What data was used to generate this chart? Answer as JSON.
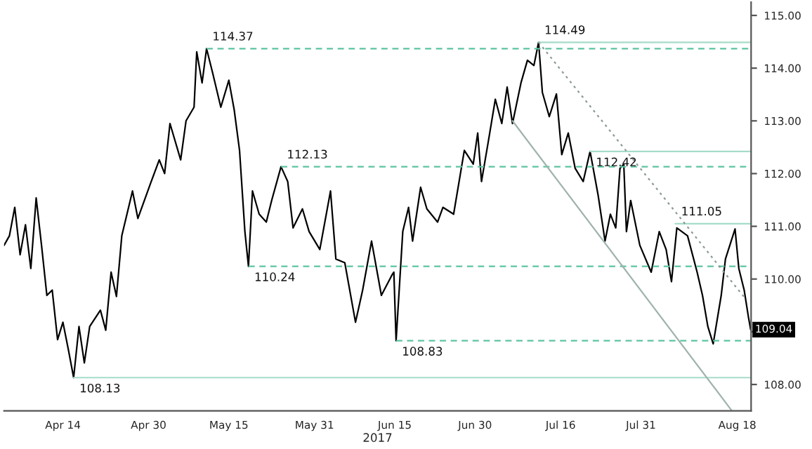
{
  "chart_data": {
    "type": "line",
    "xlabel": "2017",
    "xlim": [
      "2017-04-03",
      "2017-08-20T14:00"
    ],
    "xticks": [
      {
        "value": "2017-04-14",
        "label": "Apr 14"
      },
      {
        "value": "2017-04-30",
        "label": "Apr 30"
      },
      {
        "value": "2017-05-15",
        "label": "May 15"
      },
      {
        "value": "2017-05-31",
        "label": "May 31"
      },
      {
        "value": "2017-06-15",
        "label": "Jun 15"
      },
      {
        "value": "2017-06-30",
        "label": "Jun 30"
      },
      {
        "value": "2017-07-16",
        "label": "Jul 16"
      },
      {
        "value": "2017-07-31",
        "label": "Jul 31"
      },
      {
        "value": "2017-08-18",
        "label": "Aug 18"
      }
    ],
    "ylim": [
      107.5,
      115.25
    ],
    "yticks": [
      {
        "value": 108,
        "label": "108.00"
      },
      {
        "value": 109,
        "label": null
      },
      {
        "value": 110,
        "label": "110.00"
      },
      {
        "value": 111,
        "label": "111.00"
      },
      {
        "value": 112,
        "label": "112.00"
      },
      {
        "value": 113,
        "label": "113.00"
      },
      {
        "value": 114,
        "label": "114.00"
      },
      {
        "value": 115,
        "label": "115.00"
      }
    ],
    "grid": false,
    "series": [
      {
        "color": "#000000",
        "line_style": "solid",
        "x": [
          "2017-04-03",
          "2017-04-04",
          "2017-04-05",
          "2017-04-06",
          "2017-04-07",
          "2017-04-08",
          "2017-04-09",
          "2017-04-10",
          "2017-04-11",
          "2017-04-12",
          "2017-04-13",
          "2017-04-14",
          "2017-04-15",
          "2017-04-16",
          "2017-04-17",
          "2017-04-18",
          "2017-04-19",
          "2017-04-21",
          "2017-04-22",
          "2017-04-23",
          "2017-04-24",
          "2017-04-25",
          "2017-04-27",
          "2017-04-28",
          "2017-04-30T12:00",
          "2017-05-02",
          "2017-05-03",
          "2017-05-04",
          "2017-05-06",
          "2017-05-07",
          "2017-05-08T12:00",
          "2017-05-09",
          "2017-05-10",
          "2017-05-10T20:00",
          "2017-05-12",
          "2017-05-13T12:00",
          "2017-05-15",
          "2017-05-16",
          "2017-05-17",
          "2017-05-18",
          "2017-05-18T16:00",
          "2017-05-19T10:00",
          "2017-05-20T16:00",
          "2017-05-22",
          "2017-05-23",
          "2017-05-24T18:00",
          "2017-05-26",
          "2017-05-27",
          "2017-05-28T18:00",
          "2017-05-30",
          "2017-06-01",
          "2017-06-03",
          "2017-06-04",
          "2017-06-05T16:00",
          "2017-06-07T16:00",
          "2017-06-09",
          "2017-06-10T16:00",
          "2017-06-12T12:00",
          "2017-06-14T12:00",
          "2017-06-14T20:00",
          "2017-06-15T06:00",
          "2017-06-16T12:00",
          "2017-06-17T14:00",
          "2017-06-18T08:00",
          "2017-06-19T20:00",
          "2017-06-21",
          "2017-06-23",
          "2017-06-24",
          "2017-06-26",
          "2017-06-28",
          "2017-06-29T16:00",
          "2017-06-30T12:00",
          "2017-07-01T05:00",
          "2017-07-02T12:00",
          "2017-07-03T19:00",
          "2017-07-05",
          "2017-07-06",
          "2017-07-07",
          "2017-07-08T14:00",
          "2017-07-09T19:00",
          "2017-07-11",
          "2017-07-11T21:00",
          "2017-07-12T14:00",
          "2017-07-13T21:00",
          "2017-07-15T05:00",
          "2017-07-16T05:00",
          "2017-07-17T10:00",
          "2017-07-18T17:00",
          "2017-07-20T05:00",
          "2017-07-21T12:00",
          "2017-07-23",
          "2017-07-24T07:00",
          "2017-07-25T07:00",
          "2017-07-26T07:00",
          "2017-07-27T02:00",
          "2017-07-27T19:00",
          "2017-07-28T07:00",
          "2017-07-29T02:00",
          "2017-07-30T19:00",
          "2017-08-01T22:00",
          "2017-08-03T10:00",
          "2017-08-04T17:00",
          "2017-08-05T17:00",
          "2017-08-06T17:00",
          "2017-08-08T17:00",
          "2017-08-10T12:00",
          "2017-08-11T12:00",
          "2017-08-12T12:00",
          "2017-08-13T12:00",
          "2017-08-15",
          "2017-08-15T19:00",
          "2017-08-17T14:00",
          "2017-08-18T07:00",
          "2017-08-19T07:00",
          "2017-08-20T02:00",
          "2017-08-20T12:00"
        ],
        "values": [
          110.64,
          110.82,
          111.36,
          110.46,
          111.03,
          110.2,
          111.54,
          110.64,
          109.69,
          109.79,
          108.85,
          109.18,
          108.67,
          108.13,
          109.1,
          108.41,
          109.1,
          109.41,
          109.03,
          110.13,
          109.67,
          110.82,
          111.67,
          111.15,
          111.85,
          112.26,
          112.0,
          112.95,
          112.26,
          113.0,
          113.26,
          114.31,
          113.72,
          114.37,
          113.9,
          113.26,
          113.77,
          113.21,
          112.44,
          110.9,
          110.24,
          111.67,
          111.23,
          111.08,
          111.49,
          112.13,
          111.85,
          110.97,
          111.33,
          110.9,
          110.56,
          111.67,
          110.38,
          110.31,
          109.18,
          109.79,
          110.72,
          109.69,
          110.08,
          110.13,
          108.83,
          110.9,
          111.36,
          110.72,
          111.74,
          111.33,
          111.08,
          111.36,
          111.23,
          112.44,
          112.18,
          112.77,
          111.85,
          112.62,
          113.41,
          112.95,
          113.64,
          112.95,
          113.72,
          114.15,
          114.05,
          114.49,
          113.54,
          113.08,
          113.51,
          112.36,
          112.77,
          112.1,
          111.85,
          112.42,
          111.59,
          110.72,
          111.23,
          110.97,
          112.1,
          112.18,
          110.9,
          111.49,
          110.64,
          110.13,
          110.9,
          110.56,
          109.95,
          110.97,
          110.82,
          110.13,
          109.69,
          109.1,
          108.77,
          109.69,
          110.38,
          110.95,
          110.2,
          109.79,
          109.28,
          109.04
        ]
      },
      {
        "color": "#5cc4a0",
        "line_style": "dashed",
        "x": [
          "2017-05-10T20:00",
          "2017-08-20T14:00"
        ],
        "values": [
          114.37,
          114.37
        ]
      },
      {
        "color": "#5cc4a0",
        "line_style": "dashed",
        "x": [
          "2017-05-24T18:00",
          "2017-08-20T14:00"
        ],
        "values": [
          112.13,
          112.13
        ]
      },
      {
        "color": "#5cc4a0",
        "line_style": "dashed",
        "x": [
          "2017-05-18T16:00",
          "2017-08-20T14:00"
        ],
        "values": [
          110.24,
          110.24
        ]
      },
      {
        "color": "#5cc4a0",
        "line_style": "dashed",
        "x": [
          "2017-06-15T06:00",
          "2017-08-20T14:00"
        ],
        "values": [
          108.83,
          108.83
        ]
      },
      {
        "color": "#a6dcc8",
        "line_style": "solid",
        "x": [
          "2017-04-16",
          "2017-08-20T14:00"
        ],
        "values": [
          108.13,
          108.13
        ]
      },
      {
        "color": "#a6dcc8",
        "line_style": "solid",
        "x": [
          "2017-07-11T21:00",
          "2017-08-20T14:00"
        ],
        "values": [
          114.49,
          114.49
        ]
      },
      {
        "color": "#a6dcc8",
        "line_style": "solid",
        "x": [
          "2017-07-21T12:00",
          "2017-08-20T14:00"
        ],
        "values": [
          112.42,
          112.42
        ]
      },
      {
        "color": "#a6dcc8",
        "line_style": "solid",
        "x": [
          "2017-08-06T10:00",
          "2017-08-20T14:00"
        ],
        "values": [
          111.05,
          111.05
        ]
      },
      {
        "color": "#9fb3ae",
        "line_style": "solid",
        "x": [
          "2017-07-07",
          "2017-08-17"
        ],
        "values": [
          113.0,
          107.5
        ]
      },
      {
        "color": "#8a9a96",
        "line_style": "dotted",
        "x": [
          "2017-07-11T21:00",
          "2017-08-19T14:00"
        ],
        "values": [
          114.49,
          109.62
        ]
      }
    ],
    "annotations": [
      {
        "text": "114.37",
        "x": "2017-05-10T20:00",
        "y": 114.37
      },
      {
        "text": "112.13",
        "x": "2017-05-24T18:00",
        "y": 112.13
      },
      {
        "text": "110.24",
        "x": "2017-05-18T16:00",
        "y": 110.24
      },
      {
        "text": "108.83",
        "x": "2017-06-15T06:00",
        "y": 108.83
      },
      {
        "text": "108.13",
        "x": "2017-04-16",
        "y": 108.13
      },
      {
        "text": "114.49",
        "x": "2017-07-11T21:00",
        "y": 114.49
      },
      {
        "text": "112.42",
        "x": "2017-07-21T12:00",
        "y": 112.42
      },
      {
        "text": "111.05",
        "x": "2017-08-06T10:00",
        "y": 111.05
      },
      {
        "text": "109.04",
        "x": "2017-08-20T14:00",
        "y": 109.04
      }
    ]
  }
}
